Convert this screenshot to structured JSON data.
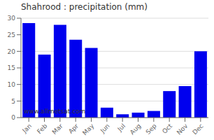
{
  "chart_data": {
    "type": "bar",
    "title": "Shahrood : precipitation (mm)",
    "categories": [
      "Jan",
      "Feb",
      "Mar",
      "Apr",
      "May",
      "Jun",
      "Jul",
      "Aug",
      "Sep",
      "Oct",
      "Nov",
      "Dec"
    ],
    "values": [
      28.5,
      19.0,
      28.0,
      23.5,
      21.0,
      3.0,
      1.0,
      1.5,
      2.0,
      8.0,
      9.5,
      20.0
    ],
    "color": "#0000EE",
    "ylim": [
      0,
      30
    ],
    "yticks": [
      0,
      5,
      10,
      15,
      20,
      25,
      30
    ],
    "grid": true,
    "annotations": [
      "www.allmetsat.com"
    ]
  }
}
